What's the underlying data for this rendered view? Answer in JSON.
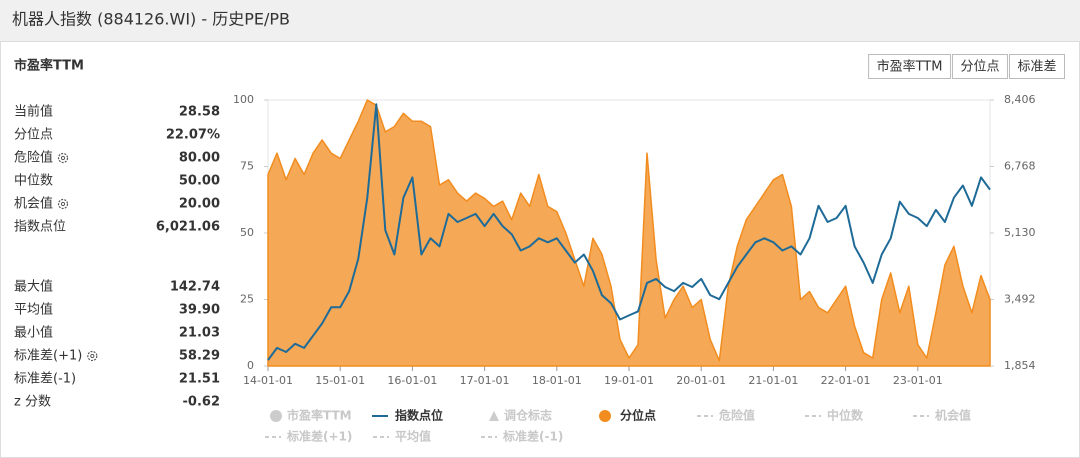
{
  "header": {
    "title": "机器人指数 (884126.WI) - 历史PE/PB"
  },
  "panel": {
    "subtitle": "市盈率TTM",
    "buttons": [
      "市盈率TTM",
      "分位点",
      "标准差"
    ],
    "stats": [
      [
        {
          "label": "当前值",
          "value": "28.58",
          "settings_icon": false
        },
        {
          "label": "分位点",
          "value": "22.07%",
          "settings_icon": false
        },
        {
          "label": "危险值",
          "value": "80.00",
          "settings_icon": true
        },
        {
          "label": "中位数",
          "value": "50.00",
          "settings_icon": false
        },
        {
          "label": "机会值",
          "value": "20.00",
          "settings_icon": true
        },
        {
          "label": "指数点位",
          "value": "6,021.06",
          "settings_icon": false
        }
      ],
      [
        {
          "label": "最大值",
          "value": "142.74",
          "settings_icon": false
        },
        {
          "label": "平均值",
          "value": "39.90",
          "settings_icon": false
        },
        {
          "label": "最小值",
          "value": "21.03",
          "settings_icon": false
        },
        {
          "label": "标准差(+1)",
          "value": "58.29",
          "settings_icon": true
        },
        {
          "label": "标准差(-1)",
          "value": "21.51",
          "settings_icon": false
        },
        {
          "label": "z 分数",
          "value": "-0.62",
          "settings_icon": false
        }
      ]
    ]
  },
  "chart_data": {
    "type": "line",
    "x": [
      2014,
      2014.125,
      2014.25,
      2014.375,
      2014.5,
      2014.625,
      2014.75,
      2014.875,
      2015,
      2015.125,
      2015.25,
      2015.375,
      2015.5,
      2015.625,
      2015.75,
      2015.875,
      2016,
      2016.125,
      2016.25,
      2016.375,
      2016.5,
      2016.625,
      2016.75,
      2016.875,
      2017,
      2017.125,
      2017.25,
      2017.375,
      2017.5,
      2017.625,
      2017.75,
      2017.875,
      2018,
      2018.125,
      2018.25,
      2018.375,
      2018.5,
      2018.625,
      2018.75,
      2018.875,
      2019,
      2019.125,
      2019.25,
      2019.375,
      2019.5,
      2019.625,
      2019.75,
      2019.875,
      2020,
      2020.125,
      2020.25,
      2020.375,
      2020.5,
      2020.625,
      2020.75,
      2020.875,
      2021,
      2021.125,
      2021.25,
      2021.375,
      2021.5,
      2021.625,
      2021.75,
      2021.875,
      2022,
      2022.125,
      2022.25,
      2022.375,
      2022.5,
      2022.625,
      2022.75,
      2022.875,
      2023,
      2023.125,
      2023.25,
      2023.375,
      2023.5,
      2023.625,
      2023.75,
      2023.875,
      2024
    ],
    "xlim": [
      2014,
      2024
    ],
    "xticks": [
      {
        "value": 2014,
        "label": "14-01-01"
      },
      {
        "value": 2015,
        "label": "15-01-01"
      },
      {
        "value": 2016,
        "label": "16-01-01"
      },
      {
        "value": 2017,
        "label": "17-01-01"
      },
      {
        "value": 2018,
        "label": "18-01-01"
      },
      {
        "value": 2019,
        "label": "19-01-01"
      },
      {
        "value": 2020,
        "label": "20-01-01"
      },
      {
        "value": 2021,
        "label": "21-01-01"
      },
      {
        "value": 2022,
        "label": "22-01-01"
      },
      {
        "value": 2023,
        "label": "23-01-01"
      }
    ],
    "ylim": [
      0,
      100
    ],
    "yticks": [
      0,
      25,
      50,
      75,
      100
    ],
    "y2lim": [
      1854,
      8406
    ],
    "y2ticks": [
      {
        "value": 1854,
        "label": "1,854"
      },
      {
        "value": 3492,
        "label": "3,492"
      },
      {
        "value": 5130,
        "label": "5,130"
      },
      {
        "value": 6768,
        "label": "6,768"
      },
      {
        "value": 8406,
        "label": "8,406"
      }
    ],
    "grid": false,
    "series": [
      {
        "name": "指数点位",
        "color": "#1f6b98",
        "axis": "y2",
        "style": "line",
        "values": [
          2000,
          2300,
          2200,
          2400,
          2300,
          2600,
          2900,
          3300,
          3300,
          3700,
          4500,
          6000,
          8300,
          5200,
          4600,
          6000,
          6500,
          4600,
          5000,
          4800,
          5600,
          5400,
          5500,
          5600,
          5300,
          5600,
          5300,
          5100,
          4700,
          4800,
          5000,
          4900,
          5000,
          4700,
          4400,
          4600,
          4200,
          3600,
          3400,
          3000,
          3100,
          3200,
          3900,
          4000,
          3800,
          3700,
          3900,
          3800,
          4000,
          3600,
          3500,
          3900,
          4300,
          4600,
          4900,
          5000,
          4900,
          4700,
          4800,
          4600,
          5000,
          5800,
          5400,
          5500,
          5800,
          4800,
          4400,
          3900,
          4600,
          5000,
          5900,
          5600,
          5500,
          5300,
          5700,
          5400,
          6000,
          6300,
          5800,
          6500,
          6200
        ]
      },
      {
        "name": "分位点",
        "color": "#f28c1e",
        "axis": "y",
        "style": "area",
        "values": [
          72,
          80,
          70,
          78,
          72,
          80,
          85,
          80,
          78,
          85,
          92,
          100,
          98,
          88,
          90,
          95,
          92,
          92,
          90,
          68,
          70,
          65,
          62,
          65,
          63,
          60,
          62,
          55,
          65,
          60,
          72,
          60,
          58,
          50,
          40,
          30,
          48,
          42,
          30,
          10,
          3,
          8,
          80,
          40,
          18,
          25,
          30,
          22,
          25,
          10,
          2,
          30,
          45,
          55,
          60,
          65,
          70,
          72,
          60,
          25,
          28,
          22,
          20,
          25,
          30,
          15,
          5,
          3,
          25,
          35,
          20,
          30,
          8,
          3,
          20,
          38,
          45,
          30,
          20,
          34,
          25
        ]
      }
    ],
    "inactive_legend": [
      {
        "name": "市盈率TTM",
        "marker": "circle"
      },
      {
        "name": "调仓标志",
        "marker": "triangle"
      },
      {
        "name": "危险值",
        "marker": "dash"
      },
      {
        "name": "中位数",
        "marker": "dash"
      },
      {
        "name": "机会值",
        "marker": "dash"
      },
      {
        "name": "标准差(+1)",
        "marker": "dash"
      },
      {
        "name": "平均值",
        "marker": "dash"
      },
      {
        "name": "标准差(-1)",
        "marker": "dash"
      }
    ]
  }
}
